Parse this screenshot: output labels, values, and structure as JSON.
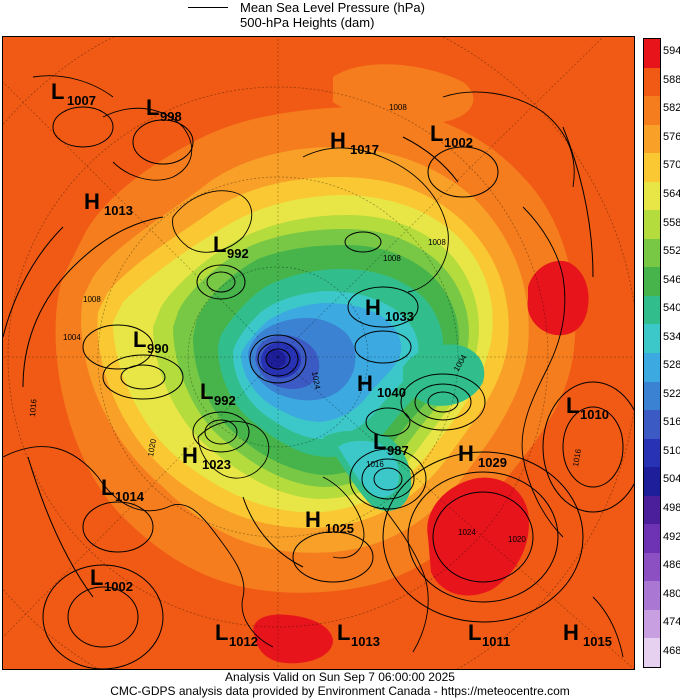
{
  "legend": {
    "pressure_label": "Mean Sea Level Pressure (hPa)",
    "heights_label": "500-hPa Heights (dam)"
  },
  "colorbar": {
    "levels": [
      "594",
      "588",
      "582",
      "576",
      "570",
      "564",
      "558",
      "552",
      "546",
      "540",
      "534",
      "528",
      "522",
      "516",
      "510",
      "504",
      "498",
      "492",
      "486",
      "480",
      "474",
      "468"
    ],
    "colors": [
      "#e8141c",
      "#f05a14",
      "#f57d1e",
      "#f8a028",
      "#fac832",
      "#e8e646",
      "#b4dc3c",
      "#78c846",
      "#46b44b",
      "#32be8c",
      "#3cc8c8",
      "#3caae1",
      "#3c82d2",
      "#3c5ac3",
      "#2832b4",
      "#1e1e9b",
      "#4b1e9b",
      "#6e32b4",
      "#8c50c3",
      "#aa78d2",
      "#c8a0e1",
      "#e6d2f0"
    ]
  },
  "systems": [
    {
      "type": "L",
      "value": "1007"
    },
    {
      "type": "L",
      "value": "998"
    },
    {
      "type": "H",
      "value": "1017"
    },
    {
      "type": "L",
      "value": "1002"
    },
    {
      "type": "H",
      "value": "1013"
    },
    {
      "type": "L",
      "value": "992"
    },
    {
      "type": "H",
      "value": "1033"
    },
    {
      "type": "L",
      "value": "990"
    },
    {
      "type": "H",
      "value": "1040"
    },
    {
      "type": "L",
      "value": "992"
    },
    {
      "type": "L",
      "value": "1010"
    },
    {
      "type": "L",
      "value": "987"
    },
    {
      "type": "H",
      "value": "1029"
    },
    {
      "type": "H",
      "value": "1023"
    },
    {
      "type": "L",
      "value": "1014"
    },
    {
      "type": "H",
      "value": "1025"
    },
    {
      "type": "L",
      "value": "1002"
    },
    {
      "type": "L",
      "value": "1012"
    },
    {
      "type": "L",
      "value": "1013"
    },
    {
      "type": "L",
      "value": "1011"
    },
    {
      "type": "H",
      "value": "1015"
    }
  ],
  "isobar_labels": [
    "1008",
    "1020",
    "1016",
    "1004",
    "1008",
    "1008",
    "1008",
    "1024",
    "1020",
    "1016",
    "1004",
    "1024",
    "1016"
  ],
  "footer": {
    "line1": "Analysis Valid on Sun Sep  7 06:00:00 2025",
    "line2": "CMC-GDPS analysis data provided by Environment Canada - https://meteocentre.com"
  }
}
